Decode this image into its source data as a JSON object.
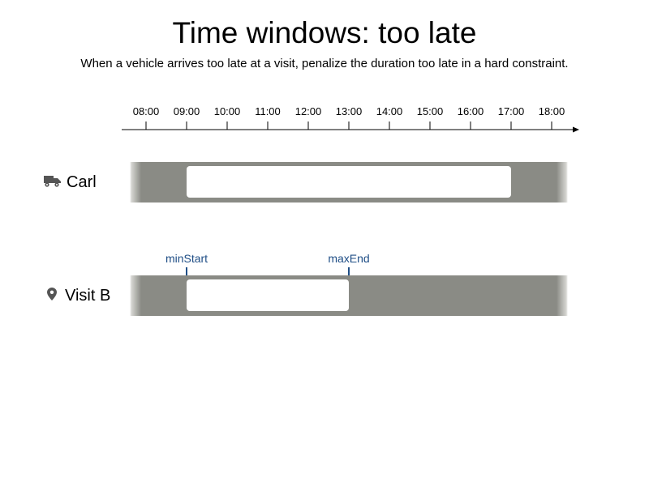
{
  "title": "Time windows: too late",
  "subtitle": "When a vehicle arrives too late at a visit, penalize the duration too late in a hard constraint.",
  "timeline": {
    "ticks": [
      "08:00",
      "09:00",
      "10:00",
      "11:00",
      "12:00",
      "13:00",
      "14:00",
      "15:00",
      "16:00",
      "17:00",
      "18:00"
    ],
    "start_hour": 7.5,
    "end_hour": 18.5
  },
  "vehicle": {
    "icon": "truck-icon",
    "name": "Carl",
    "window_start_hour": 9,
    "window_end_hour": 17
  },
  "visit": {
    "icon": "location-pin-icon",
    "name": "Visit B",
    "window_start_hour": 9,
    "window_end_hour": 13,
    "min_start_label": "minStart",
    "max_end_label": "maxEnd"
  },
  "colors": {
    "lane": "#8a8b85",
    "marker": "#1f4e86",
    "icon": "#555555"
  }
}
